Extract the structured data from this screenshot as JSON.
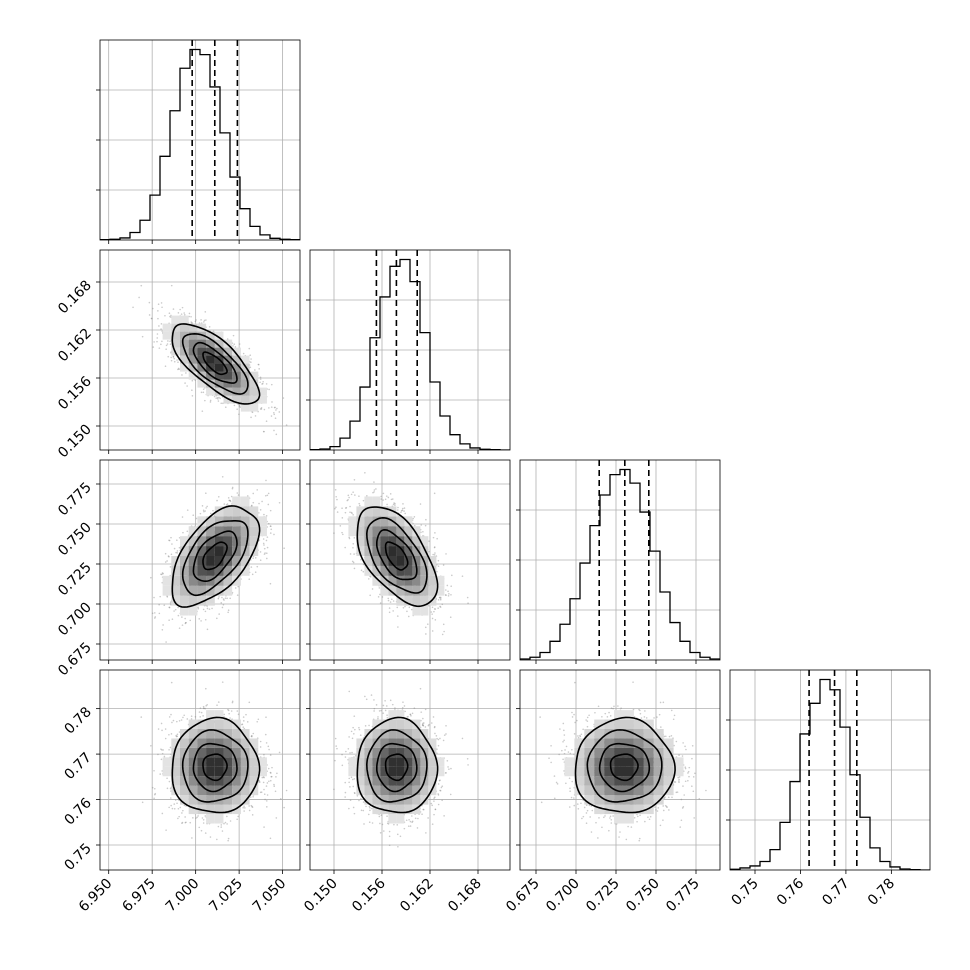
{
  "chart_data": {
    "type": "corner",
    "grid": true,
    "histogram_style": "step",
    "contour_levels": 4,
    "parameters": [
      {
        "index": 0,
        "range": [
          6.945,
          7.06
        ],
        "ticks": [
          6.95,
          6.975,
          7.0,
          7.025,
          7.05
        ],
        "tick_labels": [
          "6.950",
          "6.975",
          "7.000",
          "7.025",
          "7.050"
        ],
        "quantiles": [
          6.998,
          7.011,
          7.024
        ],
        "mean": 7.011,
        "std": 0.0125,
        "hist_edges": [
          6.945,
          6.95075,
          6.9565,
          6.96225,
          6.968,
          6.97375,
          6.9795,
          6.98525,
          6.991,
          6.99675,
          7.0025,
          7.00825,
          7.014,
          7.01975,
          7.0255,
          7.03125,
          7.037,
          7.04275,
          7.0485,
          7.05425,
          7.06
        ],
        "hist_heights": [
          1,
          2,
          6,
          22,
          58,
          132,
          246,
          380,
          505,
          560,
          545,
          450,
          315,
          185,
          92,
          40,
          15,
          5,
          2,
          1
        ]
      },
      {
        "index": 1,
        "range": [
          0.147,
          0.172
        ],
        "ticks": [
          0.15,
          0.156,
          0.162,
          0.168
        ],
        "tick_labels": [
          "0.150",
          "0.156",
          "0.162",
          "0.168"
        ],
        "quantiles": [
          0.1553,
          0.1578,
          0.1604
        ],
        "mean": 0.1578,
        "std": 0.0025,
        "hist_edges": [
          0.147,
          0.14825,
          0.1495,
          0.15075,
          0.152,
          0.15325,
          0.1545,
          0.15575,
          0.157,
          0.15825,
          0.1595,
          0.16075,
          0.162,
          0.16325,
          0.1645,
          0.16575,
          0.167,
          0.16825,
          0.1695,
          0.17075,
          0.172
        ],
        "hist_heights": [
          1,
          3,
          10,
          35,
          85,
          185,
          330,
          450,
          540,
          560,
          495,
          345,
          200,
          100,
          45,
          18,
          6,
          2,
          1,
          0
        ]
      },
      {
        "index": 2,
        "range": [
          0.665,
          0.79
        ],
        "ticks": [
          0.675,
          0.7,
          0.725,
          0.75,
          0.775
        ],
        "tick_labels": [
          "0.675",
          "0.700",
          "0.725",
          "0.750",
          "0.775"
        ],
        "quantiles": [
          0.7145,
          0.7305,
          0.7455
        ],
        "mean": 0.73,
        "std": 0.0155,
        "hist_edges": [
          0.665,
          0.67125,
          0.6775,
          0.68375,
          0.69,
          0.69625,
          0.7025,
          0.70875,
          0.715,
          0.72125,
          0.7275,
          0.73375,
          0.74,
          0.74625,
          0.7525,
          0.75875,
          0.765,
          0.77125,
          0.7775,
          0.78375,
          0.79
        ],
        "hist_heights": [
          3,
          8,
          22,
          55,
          105,
          180,
          285,
          395,
          485,
          545,
          560,
          520,
          435,
          320,
          200,
          110,
          55,
          22,
          8,
          3
        ]
      },
      {
        "index": 3,
        "range": [
          0.7445,
          0.7885
        ],
        "ticks": [
          0.75,
          0.76,
          0.77,
          0.78
        ],
        "tick_labels": [
          "0.75",
          "0.76",
          "0.77",
          "0.78"
        ],
        "quantiles": [
          0.7619,
          0.7675,
          0.7724
        ],
        "mean": 0.7672,
        "std": 0.0052,
        "hist_edges": [
          0.7445,
          0.7467,
          0.7489,
          0.7511,
          0.7533,
          0.7555,
          0.7577,
          0.7599,
          0.7621,
          0.7643,
          0.7665,
          0.7687,
          0.7709,
          0.7731,
          0.7753,
          0.7775,
          0.7797,
          0.7819,
          0.7841,
          0.7863,
          0.7885
        ],
        "hist_heights": [
          2,
          6,
          12,
          25,
          60,
          140,
          260,
          400,
          490,
          560,
          530,
          420,
          280,
          155,
          65,
          25,
          9,
          3,
          1,
          0
        ]
      }
    ],
    "correlations": [
      {
        "x": 0,
        "y": 1,
        "r": -0.72
      },
      {
        "x": 0,
        "y": 2,
        "r": 0.55
      },
      {
        "x": 1,
        "y": 2,
        "r": -0.55
      },
      {
        "x": 0,
        "y": 3,
        "r": 0.0
      },
      {
        "x": 1,
        "y": 3,
        "r": 0.0
      },
      {
        "x": 2,
        "y": 3,
        "r": 0.0
      }
    ]
  }
}
